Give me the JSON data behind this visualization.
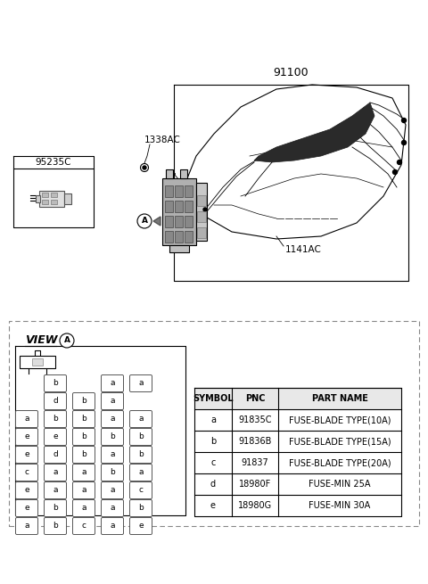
{
  "bg_color": "#ffffff",
  "label_91100": "91100",
  "label_95235C": "95235C",
  "label_1338AC": "1338AC",
  "label_1141AC": "1141AC",
  "table_headers": [
    "SYMBOL",
    "PNC",
    "PART NAME"
  ],
  "table_rows": [
    [
      "a",
      "91835C",
      "FUSE-BLADE TYPE(10A)"
    ],
    [
      "b",
      "91836B",
      "FUSE-BLADE TYPE(15A)"
    ],
    [
      "c",
      "91837",
      "FUSE-BLADE TYPE(20A)"
    ],
    [
      "d",
      "18980F",
      "FUSE-MIN 25A"
    ],
    [
      "e",
      "18980G",
      "FUSE-MIN 30A"
    ]
  ],
  "fuse_grid_rows": [
    [
      "",
      "b",
      "",
      "a",
      "a"
    ],
    [
      "",
      "d",
      "b",
      "a",
      ""
    ],
    [
      "a",
      "b",
      "b",
      "a",
      "a"
    ],
    [
      "e",
      "e",
      "b",
      "b",
      "b"
    ],
    [
      "e",
      "d",
      "b",
      "a",
      "b"
    ],
    [
      "c",
      "a",
      "a",
      "b",
      "a"
    ],
    [
      "e",
      "a",
      "a",
      "a",
      "c"
    ],
    [
      "e",
      "b",
      "a",
      "a",
      "b"
    ],
    [
      "a",
      "b",
      "c",
      "a",
      "e"
    ]
  ],
  "view_label": "VIEW",
  "view_circle_label": "A",
  "part_label_A": "A"
}
